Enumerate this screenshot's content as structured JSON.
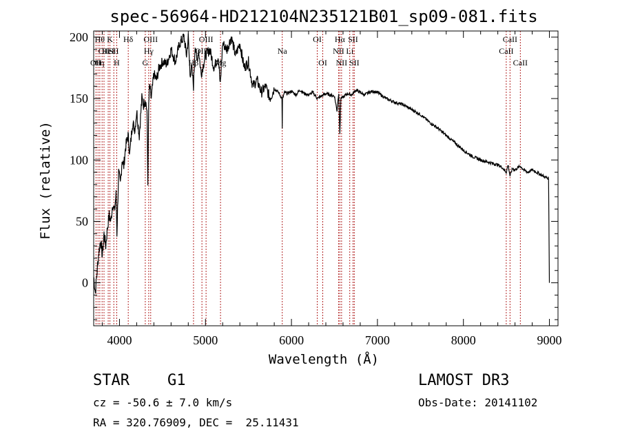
{
  "chart_data": {
    "type": "line",
    "title": "spec-56964-HD212104N235121B01_sp09-081.fits",
    "xlabel": "Wavelength (Å)",
    "ylabel": "Flux (relative)",
    "xlim": [
      3700,
      9100
    ],
    "ylim": [
      -35,
      205
    ],
    "xticks": [
      4000,
      5000,
      6000,
      7000,
      8000,
      9000
    ],
    "yticks": [
      0,
      50,
      100,
      150,
      200
    ],
    "series": [
      {
        "name": "flux",
        "x": [
          3700,
          3720,
          3740,
          3760,
          3780,
          3800,
          3820,
          3840,
          3860,
          3880,
          3900,
          3920,
          3940,
          3960,
          3970,
          3990,
          4010,
          4030,
          4050,
          4070,
          4100,
          4120,
          4150,
          4180,
          4200,
          4230,
          4260,
          4280,
          4300,
          4320,
          4330,
          4340,
          4350,
          4370,
          4400,
          4430,
          4460,
          4500,
          4550,
          4600,
          4650,
          4700,
          4750,
          4780,
          4800,
          4820,
          4840,
          4861,
          4880,
          4900,
          4920,
          4950,
          5000,
          5050,
          5100,
          5150,
          5172,
          5200,
          5250,
          5300,
          5350,
          5400,
          5450,
          5500,
          5550,
          5600,
          5650,
          5700,
          5750,
          5800,
          5850,
          5890,
          5893,
          5896,
          5920,
          5950,
          6000,
          6050,
          6100,
          6150,
          6200,
          6250,
          6300,
          6350,
          6400,
          6450,
          6500,
          6530,
          6550,
          6563,
          6575,
          6600,
          6650,
          6700,
          6750,
          6800,
          6850,
          6900,
          6950,
          7000,
          7100,
          7200,
          7300,
          7400,
          7500,
          7600,
          7700,
          7800,
          7900,
          8000,
          8100,
          8200,
          8300,
          8400,
          8450,
          8498,
          8520,
          8542,
          8570,
          8600,
          8662,
          8700,
          8750,
          8800,
          8850,
          8900,
          8950,
          8990,
          9000
        ],
        "values": [
          5,
          -8,
          10,
          25,
          35,
          22,
          40,
          30,
          45,
          55,
          50,
          65,
          58,
          72,
          40,
          90,
          80,
          100,
          95,
          110,
          120,
          105,
          130,
          125,
          140,
          120,
          150,
          145,
          150,
          140,
          80,
          145,
          160,
          150,
          170,
          165,
          175,
          180,
          178,
          190,
          180,
          195,
          200,
          185,
          200,
          170,
          175,
          160,
          195,
          180,
          190,
          170,
          185,
          190,
          175,
          185,
          160,
          195,
          190,
          200,
          185,
          195,
          175,
          180,
          160,
          165,
          155,
          160,
          150,
          158,
          155,
          150,
          125,
          150,
          155,
          154,
          156,
          153,
          157,
          154,
          153,
          155,
          150,
          152,
          154,
          153,
          152,
          140,
          155,
          120,
          150,
          151,
          154,
          153,
          157,
          155,
          153,
          155,
          156,
          155,
          150,
          147,
          145,
          141,
          137,
          131,
          126,
          120,
          114,
          108,
          103,
          100,
          98,
          96,
          94,
          90,
          96,
          87,
          93,
          92,
          95,
          92,
          90,
          92,
          90,
          88,
          86,
          85,
          0
        ]
      }
    ],
    "line_labels": [
      {
        "x": 3727,
        "row": 2,
        "text": "OII"
      },
      {
        "x": 3750,
        "row": 2,
        "text": "H"
      },
      {
        "x": 3771,
        "row": 0,
        "text": "Hθ"
      },
      {
        "x": 3798,
        "row": 2,
        "text": "η"
      },
      {
        "x": 3820,
        "row": 1,
        "text": "OII"
      },
      {
        "x": 3869,
        "row": 1,
        "text": "HeI"
      },
      {
        "x": 3889,
        "row": 0,
        "text": "K"
      },
      {
        "x": 3934,
        "row": 1,
        "text": "SII"
      },
      {
        "x": 3968,
        "row": 2,
        "text": "H"
      },
      {
        "x": 4102,
        "row": 0,
        "text": "Hδ"
      },
      {
        "x": 4300,
        "row": 2,
        "text": "G"
      },
      {
        "x": 4340,
        "row": 1,
        "text": "Hγ"
      },
      {
        "x": 4363,
        "row": 0,
        "text": "OIII"
      },
      {
        "x": 4861,
        "row": 2,
        "text": "Hβ"
      },
      {
        "x": 4959,
        "row": 1,
        "text": "OIII"
      },
      {
        "x": 5007,
        "row": 0,
        "text": "OIII"
      },
      {
        "x": 5175,
        "row": 2,
        "text": "Mg"
      },
      {
        "x": 5893,
        "row": 1,
        "text": "Na"
      },
      {
        "x": 6300,
        "row": 0,
        "text": "OI"
      },
      {
        "x": 6364,
        "row": 2,
        "text": "OI"
      },
      {
        "x": 6548,
        "row": 1,
        "text": "NII"
      },
      {
        "x": 6563,
        "row": 0,
        "text": "Hα"
      },
      {
        "x": 6583,
        "row": 2,
        "text": "NII"
      },
      {
        "x": 6678,
        "row": 1,
        "text": "Li"
      },
      {
        "x": 6716,
        "row": 0,
        "text": "SII"
      },
      {
        "x": 6731,
        "row": 2,
        "text": "SII"
      },
      {
        "x": 8498,
        "row": 1,
        "text": "CaII"
      },
      {
        "x": 8542,
        "row": 0,
        "text": "CaII"
      },
      {
        "x": 8662,
        "row": 2,
        "text": "CaII"
      }
    ],
    "marker_lines": [
      3727,
      3750,
      3771,
      3798,
      3820,
      3869,
      3889,
      3934,
      3968,
      4102,
      4300,
      4340,
      4363,
      4861,
      4959,
      5007,
      5175,
      5893,
      6300,
      6364,
      6548,
      6563,
      6583,
      6678,
      6716,
      6731,
      8498,
      8542,
      8662
    ]
  },
  "info": {
    "object_class": "STAR",
    "subclass": "G1",
    "survey": "LAMOST DR3",
    "redshift": "cz = -50.6 ± 7.0 km/s",
    "obs_date": "Obs-Date: 20141102",
    "coords": "RA = 320.76909, DEC =  25.11431"
  },
  "colors": {
    "marker": "#b22222",
    "spectrum": "#000000"
  }
}
